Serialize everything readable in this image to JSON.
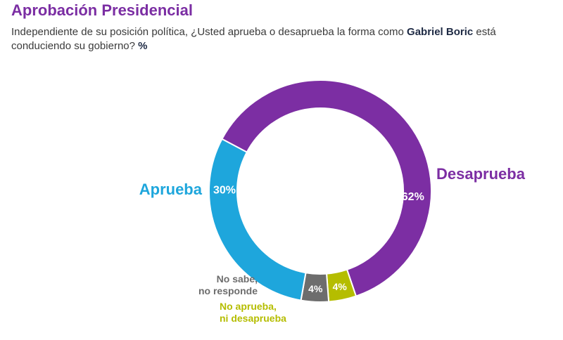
{
  "header": {
    "title": "Aprobación Presidencial",
    "subtitle_pre": "Independiente de su posición política, ¿Usted aprueba o desaprueba la forma como ",
    "subtitle_name": "Gabriel Boric",
    "subtitle_post": " está conduciendo su gobierno? ",
    "subtitle_unit": "%"
  },
  "colors": {
    "desaprueba": "#7c2ea3",
    "aprueba": "#1ea6dc",
    "no_sabe": "#6d6d6d",
    "ni": "#b5bd00",
    "title": "#7b2ea3"
  },
  "chart_data": {
    "type": "pie",
    "title": "Aprobación Presidencial",
    "unit": "%",
    "slices": [
      {
        "label": "Desaprueba",
        "value": 62,
        "value_label": "62%",
        "color": "#7c2ea3"
      },
      {
        "label": "No aprueba, ni desaprueba",
        "value": 4,
        "value_label": "4%",
        "color": "#b5bd00"
      },
      {
        "label": "No sabe, no responde",
        "value": 4,
        "value_label": "4%",
        "color": "#6d6d6d"
      },
      {
        "label": "Aprueba",
        "value": 30,
        "value_label": "30%",
        "color": "#1ea6dc"
      }
    ]
  },
  "labels": {
    "desaprueba": "Desaprueba",
    "aprueba": "Aprueba",
    "no_sabe_1": "No sabe,",
    "no_sabe_2": "no responde",
    "ni_1": "No aprueba,",
    "ni_2": "ni desaprueba"
  }
}
